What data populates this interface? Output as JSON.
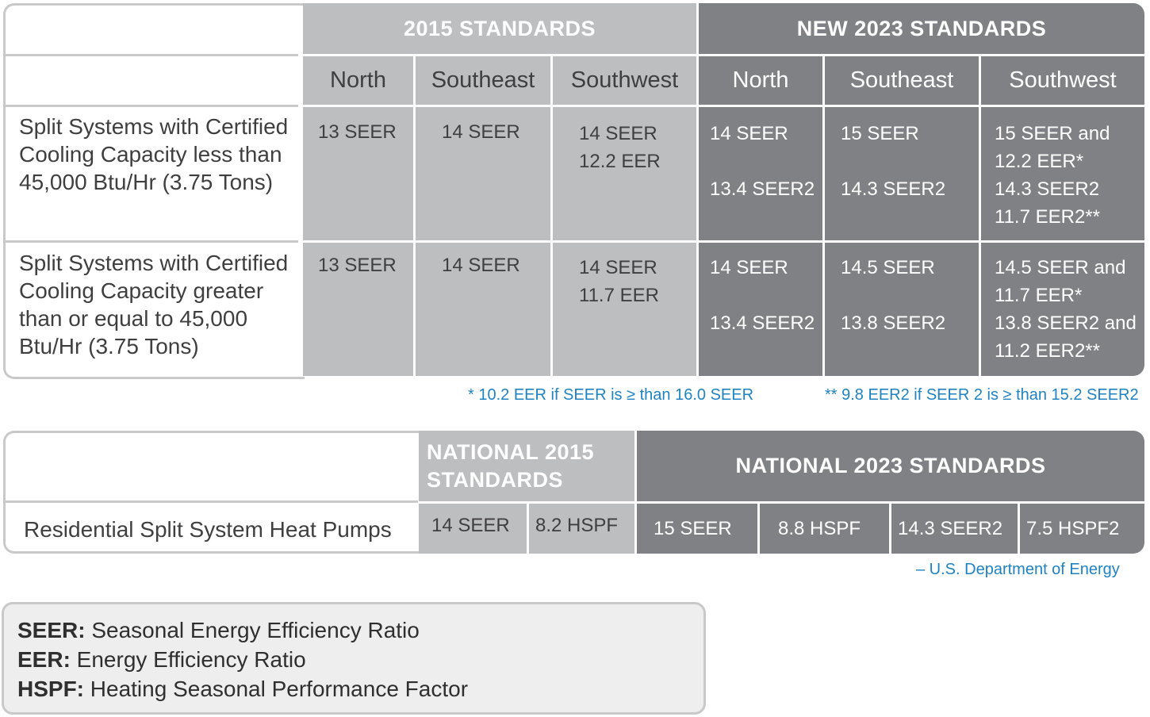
{
  "top_table": {
    "header_2015": "2015 STANDARDS",
    "header_2023": "NEW 2023 STANDARDS",
    "regions_2015": [
      "North",
      "Southeast",
      "Southwest"
    ],
    "regions_2023": [
      "North",
      "Southeast",
      "Southwest"
    ],
    "rows": [
      {
        "label": "Split Systems with Certified\nCooling Capacity less than\n45,000 Btu/Hr (3.75 Tons)",
        "cells_2015": [
          "13 SEER",
          "14 SEER",
          "14 SEER\n12.2 EER"
        ],
        "cells_2023": [
          "14 SEER\n\n13.4 SEER2",
          "15 SEER\n\n14.3 SEER2",
          "15 SEER and\n12.2 EER*\n14.3 SEER2\n11.7 EER2**"
        ]
      },
      {
        "label": "Split Systems with Certified\nCooling Capacity greater\nthan or equal to 45,000\nBtu/Hr (3.75 Tons)",
        "cells_2015": [
          "13 SEER",
          "14 SEER",
          "14 SEER\n11.7 EER"
        ],
        "cells_2023": [
          "14 SEER\n\n13.4 SEER2",
          "14.5 SEER\n\n13.8 SEER2",
          "14.5 SEER and\n11.7 EER*\n13.8 SEER2 and\n11.2 EER2**"
        ]
      }
    ],
    "footnote_1": "* 10.2 EER if SEER is ≥ than 16.0 SEER",
    "footnote_2": "** 9.8 EER2 if SEER 2 is ≥ than 15.2 SEER2"
  },
  "bottom_table": {
    "header_2015": "NATIONAL 2015\n STANDARDS",
    "header_2023": "NATIONAL 2023 STANDARDS",
    "row_label": "Residential Split System Heat Pumps",
    "cells_2015": [
      "14 SEER",
      "8.2 HSPF"
    ],
    "cells_2023": [
      "15 SEER",
      "8.8 HSPF",
      "14.3 SEER2",
      "7.5 HSPF2"
    ],
    "source": "– U.S. Department of Energy"
  },
  "legend": [
    {
      "term": "SEER:",
      "definition": " Seasonal Energy Efficiency Ratio"
    },
    {
      "term": "EER:",
      "definition": " Energy Efficiency Ratio"
    },
    {
      "term": "HSPF:",
      "definition": " Heating Seasonal Performance Factor"
    }
  ],
  "colors": {
    "light": "#bdbec0",
    "dark": "#808184",
    "border": "#c9c9c9",
    "note_blue": "#1f83c1"
  }
}
